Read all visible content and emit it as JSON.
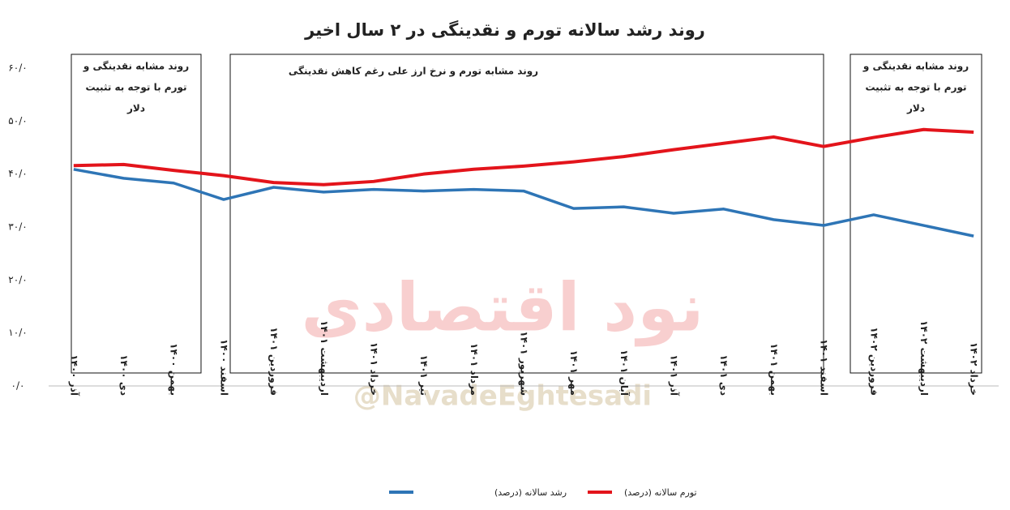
{
  "chart_data": {
    "type": "line",
    "title": "روند رشد سالانه تورم و نقدینگی در ۲ سال اخیر",
    "categories": [
      "آذر ۱۴۰۰",
      "دی ۱۴۰۰",
      "بهمن ۱۴۰۰",
      "اسفند ۱۴۰۰",
      "فروردین ۱۴۰۱",
      "اردیبهشت ۱۴۰۱",
      "خرداد ۱۴۰۱",
      "تیر ۱۴۰۱",
      "مرداد ۱۴۰۱",
      "شهریور ۱۴۰۱",
      "مهر ۱۴۰۱",
      "آبان ۱۴۰۱",
      "آذر ۱۴۰۱",
      "دی ۱۴۰۱",
      "بهمن ۱۴۰۱",
      "اسفند ۱۴۰۱",
      "فروردین ۱۴۰۲",
      "اردیبهشت ۱۴۰۲",
      "خرداد ۱۴۰۲"
    ],
    "series": [
      {
        "name": "تورم سالانه (درصد)",
        "color": "#e3141b",
        "values": [
          41.6,
          41.8,
          40.7,
          39.7,
          38.4,
          38.0,
          38.6,
          40.0,
          40.9,
          41.5,
          42.3,
          43.3,
          44.6,
          45.8,
          47.0,
          45.2,
          46.9,
          48.4,
          47.9
        ]
      },
      {
        "name": "رشد سالانه (درصد)",
        "color": "#2e75b6",
        "values": [
          40.9,
          39.2,
          38.3,
          35.2,
          37.5,
          36.6,
          37.1,
          36.8,
          37.1,
          36.8,
          33.5,
          33.8,
          32.6,
          33.4,
          31.4,
          30.3,
          32.3,
          30.3,
          28.3
        ]
      }
    ],
    "ylim": [
      0,
      60
    ],
    "yticks": [
      {
        "value": 0,
        "label": "۰/۰"
      },
      {
        "value": 10,
        "label": "۱۰/۰"
      },
      {
        "value": 20,
        "label": "۲۰/۰"
      },
      {
        "value": 30,
        "label": "۳۰/۰"
      },
      {
        "value": 40,
        "label": "۴۰/۰"
      },
      {
        "value": 50,
        "label": "۵۰/۰"
      },
      {
        "value": 60,
        "label": "۶۰/۰"
      }
    ],
    "grid": false,
    "legend": "bottom",
    "annotations": [
      {
        "lines": [
          "روند مشابه نقدینگی و",
          "تورم  با توجه به تثبیت",
          "دلار"
        ]
      },
      {
        "lines": [
          "روند مشابه تورم و نرخ ارز علی رغم کاهش نقدینگی"
        ]
      },
      {
        "lines": [
          "روند مشابه نقدینگی و",
          "تورم  با توجه به تثبیت",
          "دلار"
        ]
      }
    ]
  },
  "watermark": {
    "logo_text": "نود اقتصادی",
    "handle": "@NavadeEghtesadi"
  }
}
